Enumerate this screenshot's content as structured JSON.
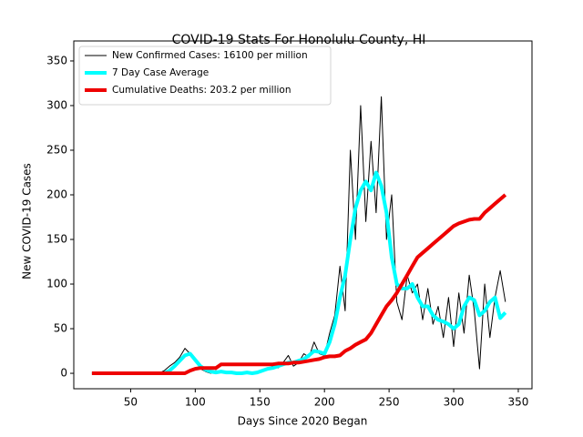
{
  "chart_data": {
    "type": "line",
    "title": "COVID-19 Stats For Honolulu County, HI",
    "x_label": "Days Since 2020 Began",
    "y_label": "New COVID-19 Cases",
    "x": [
      20,
      24,
      28,
      32,
      36,
      40,
      44,
      48,
      52,
      56,
      60,
      64,
      68,
      72,
      76,
      80,
      84,
      88,
      92,
      96,
      100,
      104,
      108,
      112,
      116,
      120,
      124,
      128,
      132,
      136,
      140,
      144,
      148,
      152,
      156,
      160,
      164,
      168,
      172,
      176,
      180,
      184,
      188,
      192,
      196,
      200,
      204,
      208,
      212,
      216,
      220,
      224,
      228,
      232,
      236,
      240,
      244,
      248,
      252,
      256,
      260,
      264,
      268,
      272,
      276,
      280,
      284,
      288,
      292,
      296,
      300,
      304,
      308,
      312,
      316,
      320,
      324,
      328,
      332,
      336,
      340
    ],
    "series": [
      {
        "name": "New Confirmed Cases: 16100 per million",
        "color": "#000000",
        "width": 1,
        "values": [
          0,
          0,
          0,
          0,
          0,
          0,
          0,
          0,
          0,
          0,
          0,
          0,
          0,
          0,
          3,
          8,
          12,
          18,
          28,
          22,
          15,
          5,
          2,
          0,
          3,
          1,
          2,
          0,
          1,
          0,
          2,
          0,
          1,
          3,
          5,
          8,
          6,
          12,
          20,
          8,
          12,
          22,
          18,
          35,
          22,
          20,
          45,
          65,
          120,
          70,
          250,
          150,
          300,
          170,
          260,
          180,
          310,
          150,
          200,
          80,
          60,
          110,
          90,
          100,
          60,
          95,
          55,
          75,
          40,
          85,
          30,
          90,
          45,
          110,
          70,
          5,
          100,
          40,
          85,
          115,
          80
        ]
      },
      {
        "name": "7 Day Case Average",
        "color": "#00ffff",
        "width": 4,
        "values": [
          0,
          0,
          0,
          0,
          0,
          0,
          0,
          0,
          0,
          0,
          0,
          0,
          0,
          0,
          0,
          3,
          8,
          14,
          20,
          22,
          15,
          8,
          4,
          2,
          1,
          2,
          1,
          1,
          0,
          0,
          1,
          0,
          1,
          3,
          5,
          6,
          8,
          10,
          12,
          12,
          14,
          16,
          20,
          25,
          24,
          22,
          35,
          55,
          85,
          110,
          150,
          185,
          205,
          215,
          205,
          225,
          210,
          180,
          130,
          100,
          95,
          95,
          100,
          85,
          75,
          75,
          65,
          60,
          58,
          55,
          50,
          55,
          75,
          85,
          82,
          65,
          70,
          80,
          85,
          62,
          68
        ]
      },
      {
        "name": "Cumulative Deaths: 203.2 per million",
        "color": "#ee0000",
        "width": 4,
        "values": [
          0,
          0,
          0,
          0,
          0,
          0,
          0,
          0,
          0,
          0,
          0,
          0,
          0,
          0,
          0,
          0,
          0,
          0,
          0,
          3,
          5,
          6,
          6,
          6,
          6,
          10,
          10,
          10,
          10,
          10,
          10,
          10,
          10,
          10,
          10,
          10,
          11,
          11,
          11,
          12,
          12,
          13,
          14,
          15,
          16,
          18,
          19,
          19,
          20,
          25,
          28,
          32,
          35,
          38,
          45,
          55,
          65,
          75,
          82,
          90,
          100,
          110,
          120,
          130,
          135,
          140,
          145,
          150,
          155,
          160,
          165,
          168,
          170,
          172,
          173,
          173,
          180,
          185,
          190,
          195,
          200
        ]
      }
    ],
    "xlim": [
      6,
      360.6
    ],
    "ylim": [
      -17.3,
      372.4
    ],
    "xticks": [
      50,
      100,
      150,
      200,
      250,
      300,
      350
    ],
    "yticks": [
      0,
      50,
      100,
      150,
      200,
      250,
      300,
      350
    ],
    "legend": "upper left"
  }
}
